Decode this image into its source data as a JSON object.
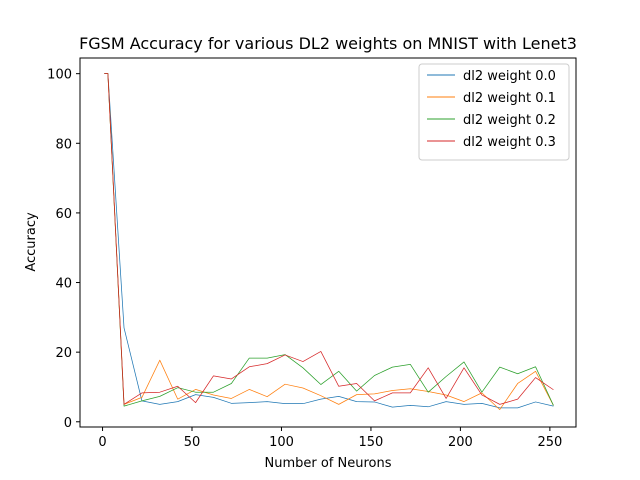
{
  "chart_data": {
    "type": "line",
    "title": "FGSM Accuracy for various DL2 weights on MNIST with Lenet3",
    "xlabel": "Number of Neurons",
    "ylabel": "Accuracy",
    "xlim": [
      -12.6,
      264.6
    ],
    "ylim": [
      -1.5,
      104.5
    ],
    "xticks": [
      0,
      50,
      100,
      150,
      200,
      250
    ],
    "yticks": [
      0,
      20,
      40,
      60,
      80,
      100
    ],
    "grid": false,
    "legend": "top-right",
    "x": [
      1,
      3,
      12,
      22,
      32,
      42,
      52,
      62,
      72,
      82,
      92,
      102,
      112,
      122,
      132,
      142,
      152,
      162,
      172,
      182,
      192,
      202,
      212,
      222,
      232,
      242,
      252
    ],
    "series": [
      {
        "name": "dl2 weight 0.0",
        "color": "#1f77b4",
        "values": [
          100,
          100,
          27.0,
          6.0,
          5.0,
          5.8,
          7.8,
          7.0,
          5.3,
          5.5,
          5.8,
          5.2,
          5.2,
          6.5,
          7.3,
          5.8,
          5.7,
          4.2,
          4.7,
          4.3,
          5.8,
          5.0,
          5.3,
          4.0,
          4.0,
          5.7,
          4.5
        ]
      },
      {
        "name": "dl2 weight 0.1",
        "color": "#ff7f0e",
        "values": [
          100,
          100,
          5.0,
          7.0,
          17.7,
          6.5,
          9.3,
          7.7,
          6.7,
          9.3,
          7.2,
          10.8,
          9.7,
          7.5,
          5.0,
          7.8,
          8.0,
          9.0,
          9.5,
          8.7,
          7.7,
          5.8,
          8.3,
          3.5,
          11.0,
          14.5,
          4.7
        ]
      },
      {
        "name": "dl2 weight 0.2",
        "color": "#2ca02c",
        "values": [
          100,
          100,
          4.5,
          6.0,
          7.3,
          9.8,
          8.5,
          8.5,
          11.0,
          18.3,
          18.3,
          19.3,
          15.5,
          10.7,
          14.5,
          8.8,
          13.3,
          15.7,
          16.5,
          8.5,
          13.0,
          17.2,
          8.5,
          15.7,
          13.8,
          15.8,
          4.7
        ]
      },
      {
        "name": "dl2 weight 0.3",
        "color": "#d62728",
        "values": [
          100,
          100,
          5.0,
          8.3,
          8.5,
          10.2,
          5.5,
          13.2,
          12.3,
          15.8,
          16.7,
          19.2,
          17.3,
          20.2,
          10.2,
          11.0,
          6.0,
          8.3,
          8.3,
          15.5,
          6.7,
          15.5,
          7.7,
          5.0,
          6.5,
          12.7,
          9.2
        ]
      }
    ]
  }
}
